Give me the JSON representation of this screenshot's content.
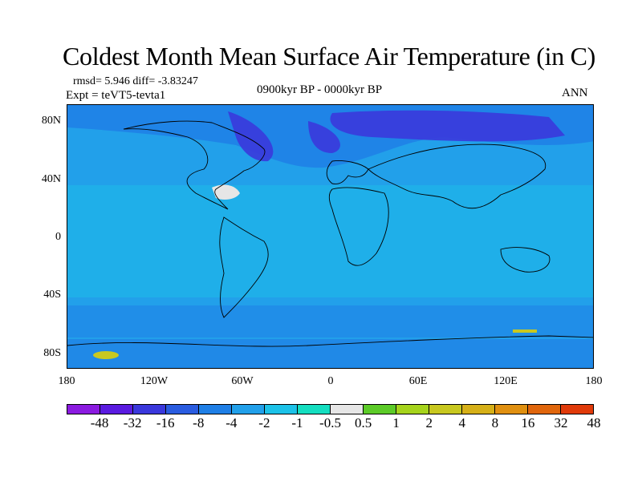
{
  "title": "Coldest Month Mean Surface Air Temperature (in C)",
  "header": {
    "stats": "rmsd= 5.946 diff= -3.83247",
    "experiment": "Expt = teVT5-tevta1",
    "period": "0900kyr BP - 0000kyr BP",
    "season": "ANN"
  },
  "axes": {
    "y_ticks": [
      "80N",
      "40N",
      "0",
      "40S",
      "80S"
    ],
    "x_ticks": [
      "180",
      "120W",
      "60W",
      "0",
      "60E",
      "120E",
      "180"
    ]
  },
  "colorbar": {
    "labels": [
      "-48",
      "-32",
      "-16",
      "-8",
      "-4",
      "-2",
      "-1",
      "-0.5",
      "0.5",
      "1",
      "2",
      "4",
      "8",
      "16",
      "32",
      "48"
    ],
    "colors": [
      "#8b1be0",
      "#5a1be0",
      "#3a38dc",
      "#2a5ce0",
      "#1f7fe6",
      "#22a0ea",
      "#1cc2e8",
      "#14dec0",
      "#e6e6e6",
      "#5ccb28",
      "#a6d41c",
      "#c8c820",
      "#d6b018",
      "#e09010",
      "#e0660c",
      "#e03a0a"
    ]
  },
  "map_colors": {
    "ocean_base": "#22a0ea",
    "cold_region": "#3a38dc",
    "cool_region": "#1f7fe6",
    "mild_region": "#1cc2e8",
    "neutral": "#e6e6e6",
    "warm": "#c8c820"
  }
}
